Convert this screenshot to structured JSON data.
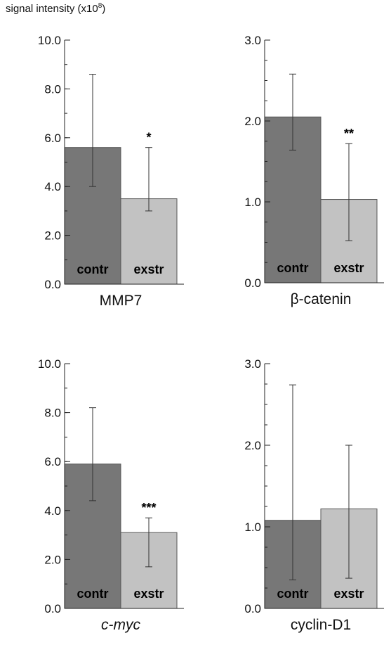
{
  "figure": {
    "ylabel_text": "signal intensity (x10",
    "ylabel_exp": "8",
    "ylabel_close": ")"
  },
  "colors": {
    "contr": "#777777",
    "exstr": "#c2c2c2",
    "axis": "#222222"
  },
  "chart_data": [
    {
      "type": "bar",
      "panel": "top-left",
      "title": "MMP7",
      "italic": false,
      "ylim": [
        0,
        10
      ],
      "yticks": [
        "0.0",
        "2.0",
        "4.0",
        "6.0",
        "8.0",
        "10.0"
      ],
      "ytick_values": [
        0,
        2,
        4,
        6,
        8,
        10
      ],
      "minor_step": 1,
      "categories": [
        "contr",
        "exstr"
      ],
      "values": [
        5.6,
        3.5
      ],
      "err_low": [
        4.0,
        3.0
      ],
      "err_high": [
        8.6,
        5.6
      ],
      "significance": [
        "",
        "*"
      ]
    },
    {
      "type": "bar",
      "panel": "top-right",
      "title": "β-catenin",
      "italic": false,
      "ylim": [
        0,
        3
      ],
      "yticks": [
        "0.0",
        "1.0",
        "2.0",
        "3.0"
      ],
      "ytick_values": [
        0,
        1,
        2,
        3
      ],
      "minor_step": 0.25,
      "categories": [
        "contr",
        "exstr"
      ],
      "values": [
        2.05,
        1.03
      ],
      "err_low": [
        1.64,
        0.52
      ],
      "err_high": [
        2.58,
        1.72
      ],
      "significance": [
        "",
        "**"
      ]
    },
    {
      "type": "bar",
      "panel": "bottom-left",
      "title": "c-myc",
      "italic": true,
      "ylim": [
        0,
        10
      ],
      "yticks": [
        "0.0",
        "2.0",
        "4.0",
        "6.0",
        "8.0",
        "10.0"
      ],
      "ytick_values": [
        0,
        2,
        4,
        6,
        8,
        10
      ],
      "minor_step": 1,
      "categories": [
        "contr",
        "exstr"
      ],
      "values": [
        5.9,
        3.1
      ],
      "err_low": [
        4.4,
        1.7
      ],
      "err_high": [
        8.2,
        3.7
      ],
      "significance": [
        "",
        "***"
      ]
    },
    {
      "type": "bar",
      "panel": "bottom-right",
      "title": "cyclin-D1",
      "italic": false,
      "ylim": [
        0,
        3
      ],
      "yticks": [
        "0.0",
        "1.0",
        "2.0",
        "3.0"
      ],
      "ytick_values": [
        0,
        1,
        2,
        3
      ],
      "minor_step": 0.25,
      "categories": [
        "contr",
        "exstr"
      ],
      "values": [
        1.08,
        1.22
      ],
      "err_low": [
        0.35,
        0.37
      ],
      "err_high": [
        2.74,
        2.0
      ],
      "significance": [
        "",
        ""
      ]
    }
  ]
}
